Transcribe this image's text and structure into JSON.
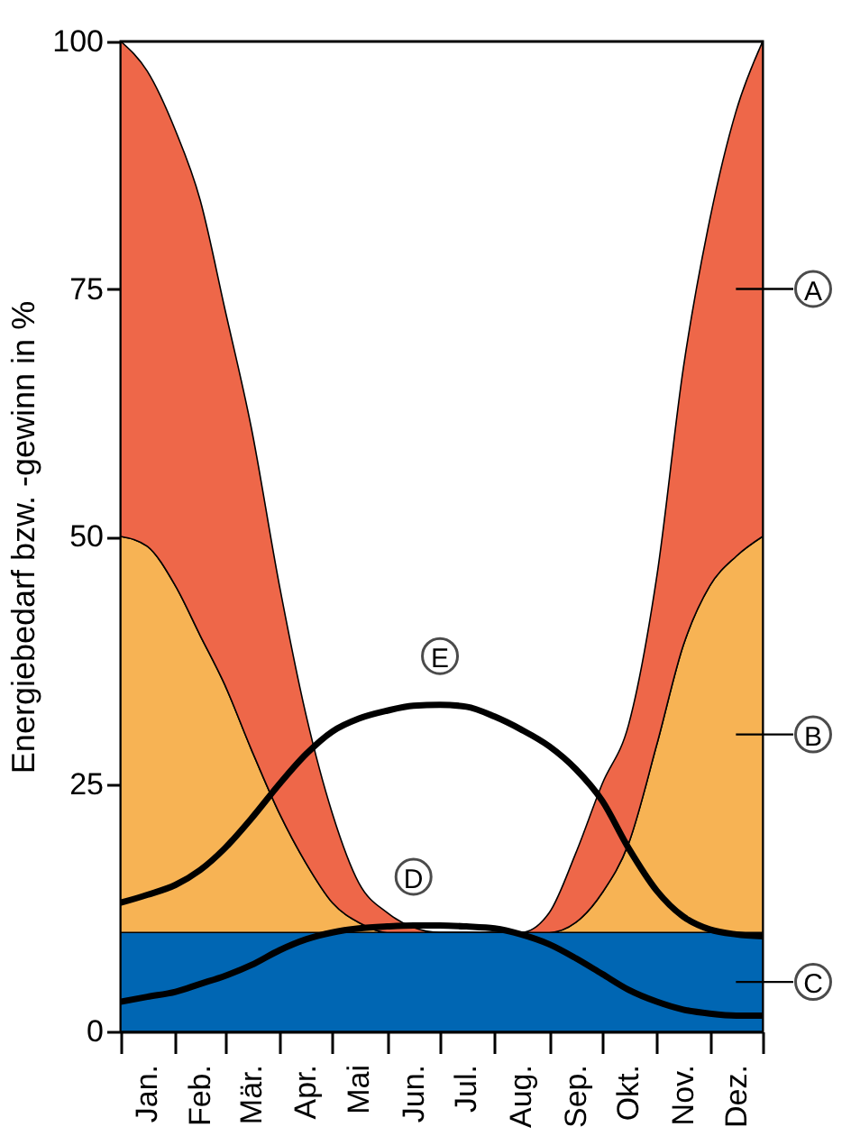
{
  "chart_data": {
    "type": "area",
    "stacked": true,
    "ylabel": "Energiebedarf bzw. -gewinn in %",
    "x": [
      "--01-01",
      "--01-16",
      "--02-01",
      "--02-15",
      "--03-01",
      "--03-16",
      "--04-01",
      "--04-16",
      "--05-01",
      "--05-16",
      "--06-01",
      "--06-16",
      "--07-01",
      "--07-16",
      "--08-01",
      "--08-16",
      "--09-01",
      "--09-16",
      "--10-01",
      "--10-16",
      "--11-01",
      "--11-16",
      "--12-01",
      "--12-16",
      "--12-31"
    ],
    "xlim": [
      "--01-01",
      "--12-31"
    ],
    "xticks": [
      {
        "value": "--01-01",
        "label": null
      },
      {
        "value": "--01-16",
        "label": "Jan."
      },
      {
        "value": "--02-01",
        "label": null
      },
      {
        "value": "--02-15",
        "label": "Feb."
      },
      {
        "value": "--03-01",
        "label": null
      },
      {
        "value": "--03-16",
        "label": "Mär."
      },
      {
        "value": "--04-01",
        "label": null
      },
      {
        "value": "--04-16",
        "label": "Apr."
      },
      {
        "value": "--05-01",
        "label": null
      },
      {
        "value": "--05-16",
        "label": "Mai"
      },
      {
        "value": "--06-01",
        "label": null
      },
      {
        "value": "--06-16",
        "label": "Jun."
      },
      {
        "value": "--07-01",
        "label": null
      },
      {
        "value": "--07-16",
        "label": "Jul."
      },
      {
        "value": "--08-01",
        "label": null
      },
      {
        "value": "--08-16",
        "label": "Aug."
      },
      {
        "value": "--09-01",
        "label": null
      },
      {
        "value": "--09-16",
        "label": "Sep."
      },
      {
        "value": "--10-01",
        "label": null
      },
      {
        "value": "--10-16",
        "label": "Okt."
      },
      {
        "value": "--11-01",
        "label": null
      },
      {
        "value": "--11-16",
        "label": "Nov."
      },
      {
        "value": "--12-01",
        "label": null
      },
      {
        "value": "--12-16",
        "label": "Dez."
      },
      {
        "value": "--12-31",
        "label": null
      }
    ],
    "legend": "right",
    "ylim": [
      0,
      100
    ],
    "yticks": [
      0,
      25,
      50,
      75,
      100
    ],
    "series": [
      {
        "name": "C",
        "color": "#0066b3",
        "values": [
          10,
          10,
          10,
          10,
          10,
          10,
          10,
          10,
          10,
          10,
          10,
          10,
          10,
          10,
          10,
          10,
          10,
          10,
          10,
          10,
          10,
          10,
          10,
          10,
          10
        ]
      },
      {
        "name": "B",
        "color": "#f7b354",
        "values": [
          40,
          39,
          35,
          30,
          25,
          18.5,
          12,
          7,
          3,
          1,
          0,
          0,
          0,
          0,
          0,
          0,
          0,
          1,
          4,
          9,
          19,
          29,
          35,
          38,
          40
        ]
      },
      {
        "name": "A",
        "color": "#ee6749",
        "values": [
          50,
          48,
          46,
          44,
          38,
          32.5,
          23,
          15,
          9,
          4,
          2,
          0.5,
          0,
          0,
          0,
          0,
          2,
          7,
          11,
          12,
          17,
          28,
          37,
          45,
          50
        ]
      },
      {
        "name": "D",
        "type": "line",
        "color": "#000000",
        "values": [
          3,
          3.5,
          4,
          4.8,
          5.6,
          6.7,
          8.2,
          9.3,
          10,
          10.4,
          10.6,
          10.7,
          10.7,
          10.6,
          10.4,
          9.8,
          8.8,
          7.4,
          5.8,
          4.2,
          3,
          2.2,
          1.8,
          1.6,
          1.6
        ]
      },
      {
        "name": "E",
        "type": "line",
        "color": "#000000",
        "values": [
          13,
          13.8,
          14.8,
          16.3,
          18.5,
          21.5,
          25,
          28,
          30.3,
          31.6,
          32.4,
          32.9,
          33,
          32.8,
          31.8,
          30.5,
          28.8,
          26.5,
          23.3,
          18.5,
          14.2,
          11.6,
          10.3,
          9.8,
          9.6
        ]
      }
    ]
  }
}
